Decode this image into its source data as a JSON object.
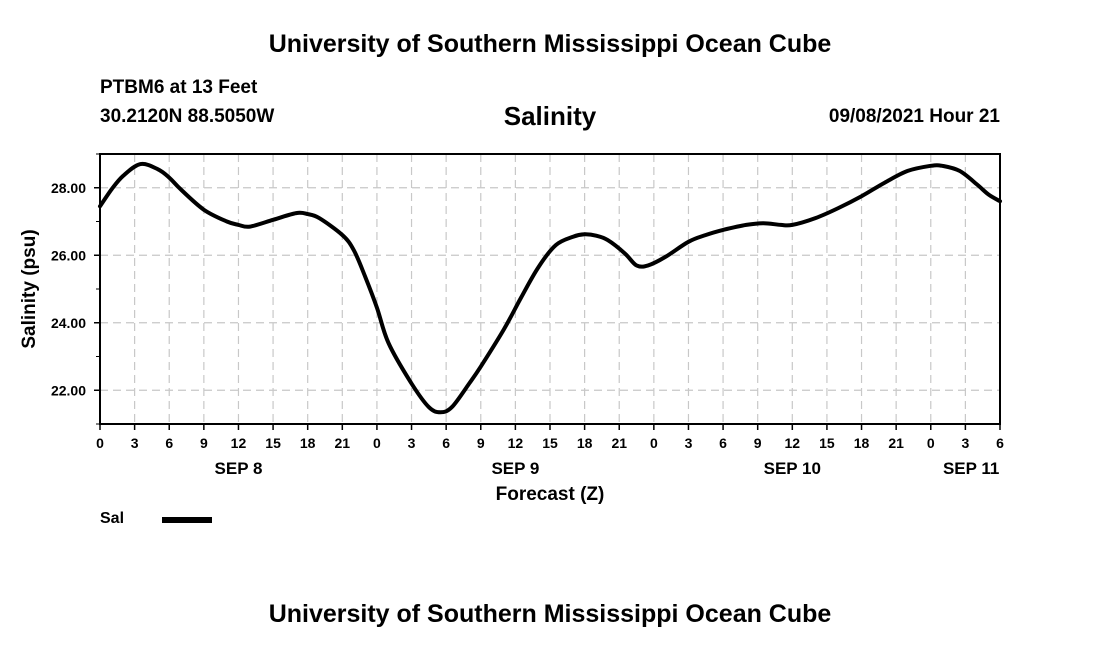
{
  "header": {
    "title_top": "University of Southern Mississippi Ocean Cube",
    "station": "PTBM6 at 13 Feet",
    "coords": "30.2120N  88.5050W",
    "chart_title": "Salinity",
    "datetime": "09/08/2021 Hour 21"
  },
  "footer": {
    "title_bottom": "University of Southern Mississippi Ocean Cube"
  },
  "legend": {
    "label": "Sal",
    "color": "#000000"
  },
  "chart_data": {
    "type": "line",
    "title": "Salinity",
    "xlabel": "Forecast (Z)",
    "ylabel": "Salinity (psu)",
    "x_range_hours": [
      0,
      78
    ],
    "ylim": [
      21.0,
      29.0
    ],
    "y_ticks": [
      22,
      24,
      26,
      28
    ],
    "y_tick_labels": [
      "22.00",
      "24.00",
      "26.00",
      "28.00"
    ],
    "x_ticks_hours": [
      0,
      3,
      6,
      9,
      12,
      15,
      18,
      21,
      24,
      27,
      30,
      33,
      36,
      39,
      42,
      45,
      48,
      51,
      54,
      57,
      60,
      63,
      66,
      69,
      72,
      75,
      78
    ],
    "x_tick_labels": [
      "0",
      "3",
      "6",
      "9",
      "12",
      "15",
      "18",
      "21",
      "0",
      "3",
      "6",
      "9",
      "12",
      "15",
      "18",
      "21",
      "0",
      "3",
      "6",
      "9",
      "12",
      "15",
      "18",
      "21",
      "0",
      "3",
      "6"
    ],
    "date_labels": [
      {
        "hour": 12,
        "label": "SEP 8"
      },
      {
        "hour": 36,
        "label": "SEP 9"
      },
      {
        "hour": 60,
        "label": "SEP 10"
      },
      {
        "hour": 75.5,
        "label": "SEP 11"
      }
    ],
    "grid": true,
    "series": [
      {
        "name": "Sal",
        "x": [
          0,
          1,
          2,
          3.5,
          5,
          6,
          7,
          9,
          11,
          12,
          13,
          15,
          17,
          18,
          19,
          21,
          22,
          23,
          24,
          25,
          27,
          28.5,
          29.5,
          30.5,
          32,
          33,
          35,
          36.5,
          38,
          39.5,
          41,
          42,
          43,
          44,
          45.5,
          46.5,
          47.5,
          49,
          51,
          52.5,
          54,
          56,
          57.5,
          59,
          60,
          62,
          64,
          66,
          68,
          70,
          72,
          73,
          74.5,
          76,
          77,
          78
        ],
        "values": [
          27.45,
          27.95,
          28.35,
          28.7,
          28.55,
          28.3,
          27.95,
          27.35,
          27.0,
          26.9,
          26.85,
          27.05,
          27.25,
          27.22,
          27.1,
          26.6,
          26.15,
          25.35,
          24.45,
          23.4,
          22.2,
          21.5,
          21.35,
          21.5,
          22.2,
          22.7,
          23.8,
          24.75,
          25.65,
          26.3,
          26.55,
          26.62,
          26.58,
          26.45,
          26.05,
          25.7,
          25.7,
          25.95,
          26.4,
          26.6,
          26.75,
          26.9,
          26.95,
          26.9,
          26.9,
          27.1,
          27.4,
          27.75,
          28.15,
          28.5,
          28.65,
          28.65,
          28.5,
          28.1,
          27.8,
          27.6
        ]
      }
    ]
  }
}
